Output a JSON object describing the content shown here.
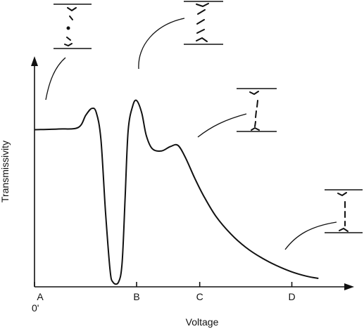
{
  "chart_data": {
    "type": "line",
    "title": "",
    "xlabel": "Voltage",
    "ylabel": "Transmissivity",
    "origin_label": "0'",
    "xlim": [
      0,
      10
    ],
    "ylim": [
      0,
      10
    ],
    "x_ticks": [
      {
        "label": "A",
        "x": 0
      },
      {
        "label": "B",
        "x": 3.38
      },
      {
        "label": "C",
        "x": 5.47
      },
      {
        "label": "D",
        "x": 8.52
      }
    ],
    "grid": false,
    "legend": "none",
    "series": [
      {
        "points": [
          [
            0,
            6.85
          ],
          [
            0.8,
            6.88
          ],
          [
            1.45,
            6.95
          ],
          [
            1.7,
            7.5
          ],
          [
            1.9,
            7.8
          ],
          [
            2.05,
            7.6
          ],
          [
            2.2,
            6.4
          ],
          [
            2.35,
            3.2
          ],
          [
            2.5,
            0.6
          ],
          [
            2.6,
            0.05
          ],
          [
            2.78,
            0.05
          ],
          [
            2.9,
            0.9
          ],
          [
            3.0,
            3.8
          ],
          [
            3.1,
            6.8
          ],
          [
            3.25,
            7.9
          ],
          [
            3.38,
            8.15
          ],
          [
            3.55,
            7.6
          ],
          [
            3.7,
            6.6
          ],
          [
            3.9,
            6.0
          ],
          [
            4.2,
            5.9
          ],
          [
            4.5,
            6.1
          ],
          [
            4.75,
            6.15
          ],
          [
            5.0,
            5.6
          ],
          [
            5.3,
            4.7
          ],
          [
            5.6,
            3.9
          ],
          [
            6.0,
            3.0
          ],
          [
            6.5,
            2.2
          ],
          [
            7.0,
            1.6
          ],
          [
            7.5,
            1.15
          ],
          [
            8.0,
            0.8
          ],
          [
            8.5,
            0.52
          ],
          [
            9.0,
            0.32
          ],
          [
            9.4,
            0.22
          ]
        ]
      }
    ]
  }
}
